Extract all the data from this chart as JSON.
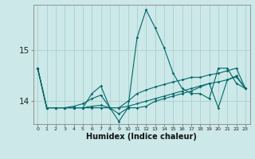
{
  "xlabel": "Humidex (Indice chaleur)",
  "background_color": "#cce8e8",
  "grid_color": "#aad0d0",
  "line_color": "#006868",
  "x": [
    0,
    1,
    2,
    3,
    4,
    5,
    6,
    7,
    8,
    9,
    10,
    11,
    12,
    13,
    14,
    15,
    16,
    17,
    18,
    19,
    20,
    21,
    22,
    23
  ],
  "series": [
    [
      14.65,
      13.87,
      13.87,
      13.87,
      13.87,
      13.87,
      14.15,
      14.3,
      13.87,
      13.6,
      13.87,
      15.25,
      15.8,
      15.45,
      15.05,
      14.55,
      14.25,
      14.15,
      14.15,
      14.05,
      14.65,
      14.65,
      14.35,
      14.25
    ],
    [
      14.65,
      13.87,
      13.87,
      13.87,
      13.9,
      13.95,
      14.05,
      14.12,
      13.87,
      13.87,
      14.0,
      14.15,
      14.22,
      14.28,
      14.33,
      14.38,
      14.42,
      14.47,
      14.47,
      14.52,
      14.55,
      14.6,
      14.65,
      14.25
    ],
    [
      14.65,
      13.87,
      13.87,
      13.87,
      13.87,
      13.87,
      13.9,
      13.92,
      13.87,
      13.87,
      13.9,
      13.95,
      14.0,
      14.05,
      14.1,
      14.15,
      14.2,
      14.25,
      14.3,
      14.35,
      14.38,
      14.42,
      14.48,
      14.25
    ],
    [
      14.65,
      13.87,
      13.87,
      13.87,
      13.87,
      13.87,
      13.87,
      13.87,
      13.87,
      13.75,
      13.87,
      13.87,
      13.9,
      14.0,
      14.05,
      14.1,
      14.15,
      14.2,
      14.28,
      14.35,
      13.87,
      14.42,
      14.5,
      14.25
    ]
  ],
  "ylim": [
    13.55,
    15.9
  ],
  "yticks": [
    14,
    15
  ],
  "xlim": [
    -0.5,
    23.5
  ]
}
